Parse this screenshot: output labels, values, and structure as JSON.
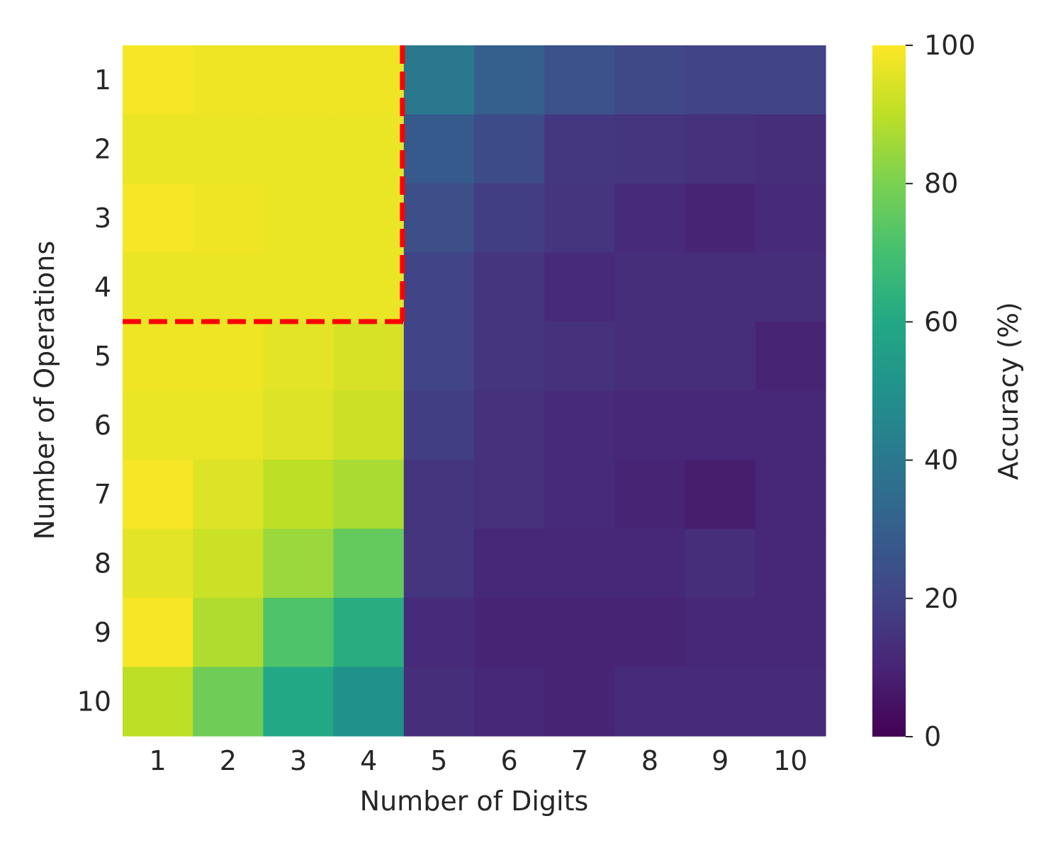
{
  "chart_data": {
    "type": "heatmap",
    "title": "",
    "xlabel": "Number of Digits",
    "ylabel": "Number of Operations",
    "x_categories": [
      "1",
      "2",
      "3",
      "4",
      "5",
      "6",
      "7",
      "8",
      "9",
      "10"
    ],
    "y_categories": [
      "1",
      "2",
      "3",
      "4",
      "5",
      "6",
      "7",
      "8",
      "9",
      "10"
    ],
    "values": [
      [
        99,
        98,
        98,
        98,
        40,
        30,
        25,
        22,
        20,
        20
      ],
      [
        97,
        97,
        97,
        97,
        28,
        23,
        16,
        15,
        14,
        13
      ],
      [
        99,
        98,
        97,
        97,
        24,
        18,
        15,
        12,
        10,
        12
      ],
      [
        97,
        97,
        97,
        97,
        20,
        15,
        12,
        13,
        13,
        13
      ],
      [
        98,
        98,
        96,
        94,
        20,
        15,
        14,
        13,
        13,
        10
      ],
      [
        97,
        97,
        95,
        92,
        18,
        14,
        12,
        11,
        11,
        11
      ],
      [
        99,
        95,
        90,
        87,
        15,
        14,
        12,
        10,
        8,
        11
      ],
      [
        96,
        92,
        85,
        76,
        15,
        11,
        11,
        11,
        13,
        11
      ],
      [
        99,
        88,
        72,
        62,
        12,
        10,
        10,
        10,
        11,
        11
      ],
      [
        90,
        78,
        60,
        50,
        13,
        11,
        10,
        12,
        12,
        12
      ]
    ],
    "colormap": "viridis",
    "zlim": [
      0,
      100
    ],
    "colorbar_label": "Accuracy (%)",
    "colorbar_ticks": [
      "0",
      "20",
      "40",
      "60",
      "80",
      "100"
    ],
    "boundary_lines": {
      "color": "#ff0000",
      "style": "dashed",
      "vertical_between_columns": [
        "4",
        "5"
      ],
      "vertical_from_row": "1",
      "vertical_to_row": "4",
      "horizontal_between_rows": [
        "4",
        "5"
      ],
      "horizontal_from_column": "1",
      "horizontal_to_column": "4"
    }
  }
}
